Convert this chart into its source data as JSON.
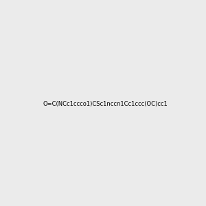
{
  "smiles": "O=C(NCc1ccco1)CSc1nccn1Cc1ccc(OC)cc1",
  "bg_color": "#ebebeb",
  "img_size": [
    300,
    300
  ],
  "title": "",
  "atom_colors": {
    "N": "#0000ff",
    "O": "#ff0000",
    "S": "#ccaa00",
    "H_on_N": "#4a9090",
    "C": "#000000"
  }
}
